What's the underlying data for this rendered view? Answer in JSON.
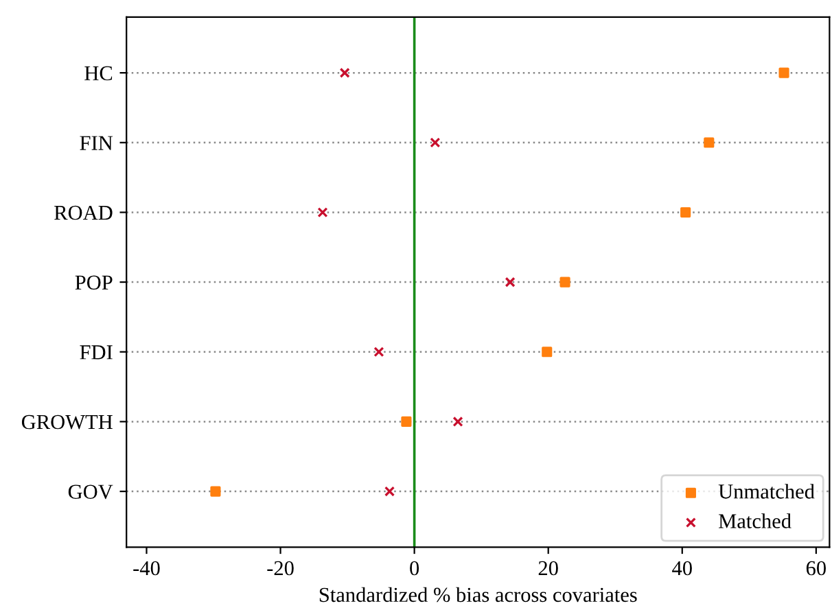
{
  "chart_data": {
    "type": "scatter",
    "orientation": "horizontal",
    "xlabel": "Standardized % bias across covariates",
    "categories": [
      "HC",
      "FIN",
      "ROAD",
      "POP",
      "FDI",
      "GROWTH",
      "GOV"
    ],
    "series": [
      {
        "name": "Unmatched",
        "color": "#ff7f0e",
        "marker": "square",
        "values": [
          55.2,
          44.0,
          40.5,
          22.5,
          19.8,
          -1.2,
          -29.7
        ]
      },
      {
        "name": "Matched",
        "color": "#c8102e",
        "marker": "cross",
        "values": [
          -10.4,
          3.1,
          -13.7,
          14.3,
          -5.3,
          6.5,
          -3.7
        ]
      }
    ],
    "xlim": [
      -43,
      62
    ],
    "xticks": [
      {
        "value": -40,
        "label": "-40"
      },
      {
        "value": -20,
        "label": "-20"
      },
      0,
      20,
      40,
      60
    ],
    "ref_lines": [
      {
        "axis": "x",
        "value": 0,
        "color": "#1a8c1a"
      }
    ],
    "grid": "y",
    "legend": "bottom right"
  }
}
